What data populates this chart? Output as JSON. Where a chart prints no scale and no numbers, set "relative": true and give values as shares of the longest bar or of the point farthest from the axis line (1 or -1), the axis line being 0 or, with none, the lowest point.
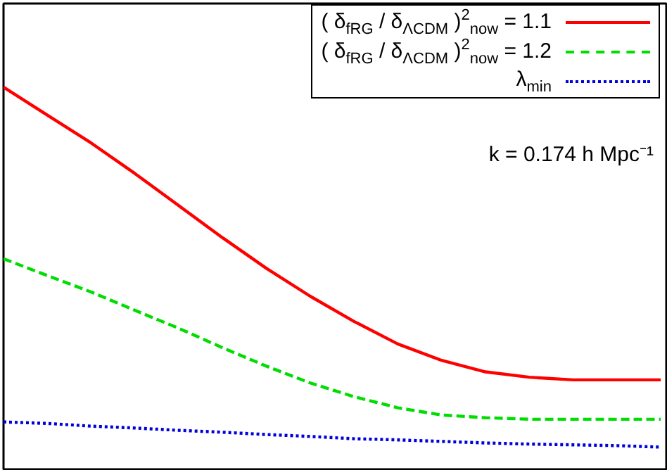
{
  "chart_data": {
    "type": "line",
    "relative": true,
    "legend": "top right",
    "grid": false,
    "categories": [
      null,
      null,
      null,
      null,
      null,
      null,
      null,
      null,
      null,
      null,
      null,
      null,
      null,
      null,
      null,
      null
    ],
    "annotations": [
      "k = 0.174 h Mpc⁻¹"
    ],
    "series": [
      {
        "name": "( δ$_{fRG}$ / δ$_{ΛCDM}$ )$^{2}$$_{now}$ = 1.1",
        "color": "#ff0000",
        "line_style": "solid",
        "values": [
          1,
          0.927,
          0.854,
          0.774,
          0.69,
          0.606,
          0.526,
          0.453,
          0.387,
          0.328,
          0.285,
          0.255,
          0.241,
          0.234,
          0.234,
          0.234
        ]
      },
      {
        "name": "( δ$_{fRG}$ / δ$_{ΛCDM}$ )$^{2}$$_{now}$ = 1.2",
        "color": "#00dd00",
        "line_style": "dashed",
        "values": [
          0.551,
          0.507,
          0.464,
          0.416,
          0.369,
          0.318,
          0.27,
          0.226,
          0.19,
          0.161,
          0.142,
          0.135,
          0.131,
          0.131,
          0.131,
          0.131
        ]
      },
      {
        "name": "λ$_{min}$",
        "color": "#0000dd",
        "line_style": "dotted",
        "values": [
          0.124,
          0.12,
          0.113,
          0.108,
          0.102,
          0.097,
          0.091,
          0.086,
          0.08,
          0.077,
          0.073,
          0.069,
          0.066,
          0.064,
          0.062,
          0.058
        ]
      }
    ]
  }
}
